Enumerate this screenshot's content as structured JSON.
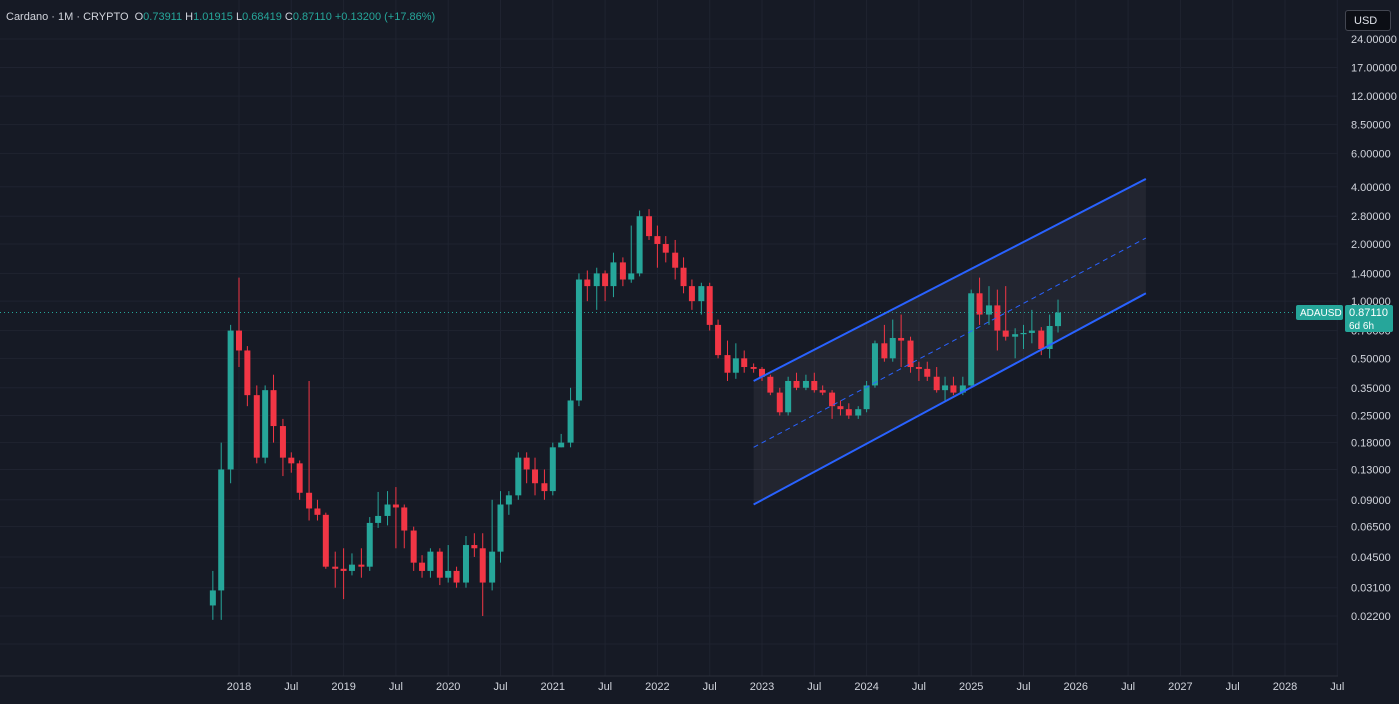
{
  "header": {
    "symbol": "Cardano",
    "interval": "1M",
    "exchange": "CRYPTO",
    "open_label": "O",
    "open": "0.73911",
    "high_label": "H",
    "high": "1.01915",
    "low_label": "L",
    "low": "0.68419",
    "close_label": "C",
    "close": "0.87110",
    "change": "+0.13200 (+17.86%)"
  },
  "currency_button": "USD",
  "price_badge": {
    "ticker": "ADAUSD",
    "price": "0.87110",
    "countdown": "6d 6h"
  },
  "colors": {
    "background": "#161a25",
    "up": "#26a69a",
    "down": "#f23645",
    "channel": "#2962ff",
    "grid": "#1f2330"
  },
  "chart_data": {
    "type": "candlestick",
    "y_scale": "log",
    "y_ticks": [
      "24.00000",
      "17.00000",
      "12.00000",
      "8.50000",
      "6.00000",
      "4.00000",
      "2.80000",
      "2.00000",
      "1.40000",
      "1.00000",
      "0.70000",
      "0.50000",
      "0.35000",
      "0.25000",
      "0.18000",
      "0.13000",
      "0.09000",
      "0.06500",
      "0.04500",
      "0.03100",
      "0.02200"
    ],
    "x_ticks": [
      {
        "label": "2018",
        "t": 2018.0
      },
      {
        "label": "Jul",
        "t": 2018.5
      },
      {
        "label": "2019",
        "t": 2019.0
      },
      {
        "label": "Jul",
        "t": 2019.5
      },
      {
        "label": "2020",
        "t": 2020.0
      },
      {
        "label": "Jul",
        "t": 2020.5
      },
      {
        "label": "2021",
        "t": 2021.0
      },
      {
        "label": "Jul",
        "t": 2021.5
      },
      {
        "label": "2022",
        "t": 2022.0
      },
      {
        "label": "Jul",
        "t": 2022.5
      },
      {
        "label": "2023",
        "t": 2023.0
      },
      {
        "label": "Jul",
        "t": 2023.5
      },
      {
        "label": "2024",
        "t": 2024.0
      },
      {
        "label": "Jul",
        "t": 2024.5
      },
      {
        "label": "2025",
        "t": 2025.0
      },
      {
        "label": "Jul",
        "t": 2025.5
      },
      {
        "label": "2026",
        "t": 2026.0
      },
      {
        "label": "Jul",
        "t": 2026.5
      },
      {
        "label": "2027",
        "t": 2027.0
      },
      {
        "label": "Jul",
        "t": 2027.5
      },
      {
        "label": "2028",
        "t": 2028.0
      },
      {
        "label": "Jul",
        "t": 2028.5
      }
    ],
    "last_price": 0.8711,
    "candles": [
      [
        2017.75,
        0.025,
        0.038,
        0.021,
        0.03
      ],
      [
        2017.83,
        0.03,
        0.18,
        0.021,
        0.13
      ],
      [
        2017.92,
        0.13,
        0.75,
        0.11,
        0.7
      ],
      [
        2018.0,
        0.7,
        1.33,
        0.45,
        0.55
      ],
      [
        2018.08,
        0.55,
        0.58,
        0.28,
        0.32
      ],
      [
        2018.17,
        0.32,
        0.36,
        0.14,
        0.15
      ],
      [
        2018.25,
        0.15,
        0.36,
        0.14,
        0.34
      ],
      [
        2018.33,
        0.34,
        0.41,
        0.18,
        0.22
      ],
      [
        2018.42,
        0.22,
        0.24,
        0.12,
        0.15
      ],
      [
        2018.5,
        0.15,
        0.16,
        0.125,
        0.14
      ],
      [
        2018.58,
        0.14,
        0.145,
        0.09,
        0.098
      ],
      [
        2018.67,
        0.098,
        0.38,
        0.07,
        0.081
      ],
      [
        2018.75,
        0.081,
        0.09,
        0.07,
        0.075
      ],
      [
        2018.83,
        0.075,
        0.077,
        0.039,
        0.04
      ],
      [
        2018.92,
        0.04,
        0.048,
        0.031,
        0.039
      ],
      [
        2019.0,
        0.039,
        0.05,
        0.027,
        0.038
      ],
      [
        2019.08,
        0.038,
        0.047,
        0.036,
        0.041
      ],
      [
        2019.17,
        0.041,
        0.05,
        0.035,
        0.04
      ],
      [
        2019.25,
        0.04,
        0.073,
        0.038,
        0.068
      ],
      [
        2019.33,
        0.068,
        0.099,
        0.064,
        0.074
      ],
      [
        2019.42,
        0.074,
        0.1,
        0.066,
        0.085
      ],
      [
        2019.5,
        0.085,
        0.105,
        0.05,
        0.082
      ],
      [
        2019.58,
        0.082,
        0.085,
        0.05,
        0.062
      ],
      [
        2019.67,
        0.062,
        0.065,
        0.038,
        0.042
      ],
      [
        2019.75,
        0.042,
        0.046,
        0.035,
        0.038
      ],
      [
        2019.83,
        0.038,
        0.05,
        0.035,
        0.048
      ],
      [
        2019.92,
        0.048,
        0.05,
        0.032,
        0.035
      ],
      [
        2020.0,
        0.035,
        0.052,
        0.033,
        0.038
      ],
      [
        2020.08,
        0.038,
        0.04,
        0.031,
        0.033
      ],
      [
        2020.17,
        0.033,
        0.058,
        0.031,
        0.052
      ],
      [
        2020.25,
        0.052,
        0.06,
        0.045,
        0.05
      ],
      [
        2020.33,
        0.05,
        0.06,
        0.022,
        0.033
      ],
      [
        2020.42,
        0.033,
        0.09,
        0.03,
        0.048
      ],
      [
        2020.5,
        0.048,
        0.1,
        0.042,
        0.085
      ],
      [
        2020.58,
        0.085,
        0.1,
        0.075,
        0.095
      ],
      [
        2020.67,
        0.095,
        0.16,
        0.09,
        0.15
      ],
      [
        2020.75,
        0.15,
        0.16,
        0.11,
        0.13
      ],
      [
        2020.83,
        0.13,
        0.15,
        0.095,
        0.11
      ],
      [
        2020.92,
        0.11,
        0.13,
        0.09,
        0.1
      ],
      [
        2021.0,
        0.1,
        0.18,
        0.095,
        0.17
      ],
      [
        2021.08,
        0.17,
        0.2,
        0.17,
        0.18
      ],
      [
        2021.17,
        0.18,
        0.35,
        0.17,
        0.3
      ],
      [
        2021.25,
        0.3,
        1.4,
        0.28,
        1.3
      ],
      [
        2021.33,
        1.3,
        1.45,
        1.0,
        1.2
      ],
      [
        2021.42,
        1.2,
        1.5,
        0.9,
        1.4
      ],
      [
        2021.5,
        1.4,
        1.45,
        1.0,
        1.2
      ],
      [
        2021.58,
        1.2,
        1.8,
        1.05,
        1.6
      ],
      [
        2021.67,
        1.6,
        1.7,
        1.2,
        1.3
      ],
      [
        2021.75,
        1.3,
        2.5,
        1.25,
        1.4
      ],
      [
        2021.83,
        1.4,
        3.0,
        1.35,
        2.8
      ],
      [
        2021.92,
        2.8,
        3.05,
        2.1,
        2.2
      ],
      [
        2022.0,
        2.2,
        2.5,
        1.5,
        2.0
      ],
      [
        2022.08,
        2.0,
        2.2,
        1.6,
        1.8
      ],
      [
        2022.17,
        1.8,
        2.1,
        1.3,
        1.5
      ],
      [
        2022.25,
        1.5,
        1.7,
        1.1,
        1.2
      ],
      [
        2022.33,
        1.2,
        1.3,
        0.9,
        1.0
      ],
      [
        2022.42,
        1.0,
        1.25,
        0.85,
        1.2
      ],
      [
        2022.5,
        1.2,
        1.25,
        0.7,
        0.75
      ],
      [
        2022.58,
        0.75,
        0.8,
        0.5,
        0.52
      ],
      [
        2022.67,
        0.52,
        0.62,
        0.38,
        0.42
      ],
      [
        2022.75,
        0.42,
        0.6,
        0.39,
        0.5
      ],
      [
        2022.83,
        0.5,
        0.55,
        0.42,
        0.45
      ],
      [
        2022.92,
        0.45,
        0.47,
        0.42,
        0.44
      ],
      [
        2023.0,
        0.44,
        0.45,
        0.38,
        0.4
      ],
      [
        2023.08,
        0.4,
        0.41,
        0.32,
        0.33
      ],
      [
        2023.17,
        0.33,
        0.35,
        0.25,
        0.26
      ],
      [
        2023.25,
        0.26,
        0.4,
        0.25,
        0.38
      ],
      [
        2023.33,
        0.38,
        0.42,
        0.34,
        0.35
      ],
      [
        2023.42,
        0.35,
        0.41,
        0.34,
        0.38
      ],
      [
        2023.5,
        0.38,
        0.42,
        0.33,
        0.34
      ],
      [
        2023.58,
        0.34,
        0.36,
        0.32,
        0.33
      ],
      [
        2023.67,
        0.33,
        0.34,
        0.24,
        0.28
      ],
      [
        2023.75,
        0.28,
        0.3,
        0.25,
        0.27
      ],
      [
        2023.83,
        0.27,
        0.29,
        0.24,
        0.25
      ],
      [
        2023.92,
        0.25,
        0.28,
        0.24,
        0.27
      ],
      [
        2024.0,
        0.27,
        0.38,
        0.26,
        0.36
      ],
      [
        2024.08,
        0.36,
        0.62,
        0.35,
        0.6
      ],
      [
        2024.17,
        0.6,
        0.75,
        0.48,
        0.5
      ],
      [
        2024.25,
        0.5,
        0.8,
        0.48,
        0.64
      ],
      [
        2024.33,
        0.64,
        0.85,
        0.45,
        0.62
      ],
      [
        2024.42,
        0.62,
        0.65,
        0.42,
        0.45
      ],
      [
        2024.5,
        0.45,
        0.48,
        0.38,
        0.44
      ],
      [
        2024.58,
        0.44,
        0.48,
        0.38,
        0.4
      ],
      [
        2024.67,
        0.4,
        0.45,
        0.33,
        0.34
      ],
      [
        2024.75,
        0.34,
        0.4,
        0.3,
        0.36
      ],
      [
        2024.83,
        0.36,
        0.4,
        0.32,
        0.33
      ],
      [
        2024.92,
        0.33,
        0.4,
        0.32,
        0.36
      ],
      [
        2025.0,
        0.36,
        1.15,
        0.35,
        1.1
      ],
      [
        2025.08,
        1.1,
        1.33,
        0.75,
        0.85
      ],
      [
        2025.17,
        0.85,
        1.2,
        0.75,
        0.95
      ],
      [
        2025.25,
        0.95,
        1.15,
        0.55,
        0.7
      ],
      [
        2025.33,
        0.7,
        1.2,
        0.62,
        0.65
      ],
      [
        2025.42,
        0.65,
        0.72,
        0.5,
        0.67
      ],
      [
        2025.5,
        0.67,
        0.75,
        0.56,
        0.68
      ],
      [
        2025.58,
        0.68,
        0.9,
        0.6,
        0.7
      ],
      [
        2025.67,
        0.7,
        0.73,
        0.52,
        0.56
      ],
      [
        2025.75,
        0.56,
        0.85,
        0.5,
        0.74
      ],
      [
        2025.83,
        0.739,
        1.019,
        0.684,
        0.871
      ]
    ],
    "channel": {
      "start": 2022.92,
      "end": 2026.67,
      "upper": [
        0.38,
        4.4
      ],
      "middle": [
        0.17,
        2.15
      ],
      "lower": [
        0.085,
        1.1
      ]
    }
  }
}
